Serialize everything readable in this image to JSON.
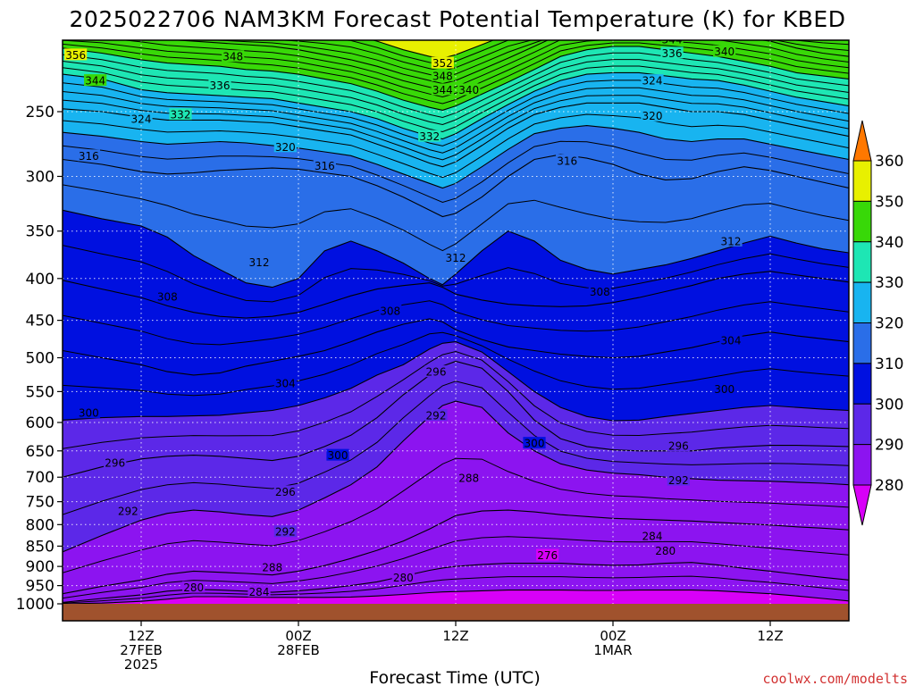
{
  "chart_data": {
    "type": "heatmap",
    "title": "2025022706 NAM3KM Forecast Potential Temperature (K) for KBED",
    "xlabel": "Forecast Time (UTC)",
    "ylabel": "",
    "credit": "coolwx.com/modelts",
    "y_axis": {
      "scale": "log-pressure",
      "range_hpa": [
        1000,
        200
      ],
      "ticks": [
        250,
        300,
        350,
        400,
        450,
        500,
        550,
        600,
        650,
        700,
        750,
        800,
        850,
        900,
        950,
        1000
      ]
    },
    "x_axis": {
      "range_hours": [
        0,
        60
      ],
      "ticks": [
        {
          "hour": 6,
          "line1": "12Z",
          "line2": "27FEB",
          "line3": "2025"
        },
        {
          "hour": 18,
          "line1": "00Z",
          "line2": "28FEB",
          "line3": ""
        },
        {
          "hour": 30,
          "line1": "12Z",
          "line2": "",
          "line3": ""
        },
        {
          "hour": 42,
          "line1": "00Z",
          "line2": "1MAR",
          "line3": ""
        },
        {
          "hour": 54,
          "line1": "12Z",
          "line2": "",
          "line3": ""
        }
      ]
    },
    "colorbar": {
      "levels": [
        280,
        290,
        300,
        310,
        320,
        330,
        340,
        350,
        360
      ],
      "colors": [
        "#d800f8",
        "#8c14f0",
        "#5c28e8",
        "#0010e0",
        "#2a6ee8",
        "#18b4f0",
        "#1ee6b4",
        "#38d808",
        "#e8f000",
        "#ffa800",
        "#ff7800"
      ],
      "arrows": "both"
    },
    "colors": {
      "ground": "#a0522d",
      "axis": "#000000",
      "grid": "#ffffff"
    },
    "sample_columns_hours": [
      0,
      3,
      6,
      8,
      10,
      12,
      14,
      16,
      18,
      20,
      22,
      24,
      26,
      28,
      29,
      30,
      32,
      34,
      36,
      38,
      40,
      42,
      44,
      46,
      48,
      50,
      52,
      54,
      56,
      58,
      60
    ],
    "contour_profiles": [
      {
        "theta": 280,
        "p": [
          1000,
          998,
          993,
          987,
          980,
          980,
          981,
          982,
          982,
          982,
          981,
          978,
          974,
          969,
          967,
          966,
          964,
          962,
          962,
          962,
          963,
          963,
          962,
          962,
          962,
          964,
          968,
          972,
          978,
          985,
          992
        ]
      },
      {
        "theta": 284,
        "p": [
          996,
          985,
          975,
          965,
          960,
          962,
          965,
          968,
          964,
          958,
          950,
          940,
          925,
          910,
          904,
          900,
          895,
          892,
          892,
          892,
          895,
          897,
          896,
          892,
          890,
          896,
          905,
          912,
          920,
          928,
          935
        ]
      },
      {
        "theta": 288,
        "p": [
          972,
          952,
          935,
          920,
          912,
          915,
          918,
          922,
          912,
          898,
          880,
          860,
          838,
          810,
          795,
          780,
          770,
          768,
          772,
          778,
          782,
          786,
          788,
          790,
          792,
          795,
          798,
          801,
          805,
          808,
          812
        ]
      },
      {
        "theta": 292,
        "p": [
          864,
          825,
          790,
          775,
          768,
          772,
          778,
          782,
          768,
          742,
          715,
          680,
          632,
          590,
          572,
          565,
          575,
          618,
          650,
          674,
          686,
          692,
          695,
          700,
          703,
          706,
          707,
          708,
          710,
          712,
          715
        ]
      },
      {
        "theta": 296,
        "p": [
          700,
          680,
          665,
          660,
          658,
          660,
          664,
          668,
          660,
          642,
          622,
          592,
          555,
          525,
          512,
          505,
          515,
          550,
          596,
          628,
          642,
          648,
          650,
          650,
          650,
          645,
          642,
          640,
          640,
          641,
          642
        ]
      },
      {
        "theta": 300,
        "p": [
          596,
          592,
          590,
          590,
          589,
          588,
          584,
          580,
          572,
          560,
          545,
          525,
          510,
          488,
          480,
          478,
          492,
          520,
          550,
          575,
          590,
          597,
          596,
          590,
          585,
          580,
          575,
          572,
          575,
          578,
          580
        ]
      },
      {
        "theta": 304,
        "p": [
          490,
          500,
          510,
          520,
          525,
          522,
          512,
          505,
          498,
          490,
          478,
          465,
          455,
          448,
          452,
          462,
          475,
          485,
          490,
          495,
          498,
          500,
          498,
          492,
          486,
          478,
          470,
          465,
          470,
          474,
          478
        ]
      },
      {
        "theta": 308,
        "p": [
          402,
          412,
          422,
          432,
          440,
          445,
          447,
          445,
          440,
          430,
          420,
          412,
          408,
          405,
          410,
          418,
          425,
          430,
          432,
          433,
          432,
          428,
          422,
          415,
          408,
          400,
          395,
          392,
          396,
          400,
          404
        ]
      },
      {
        "theta": 312,
        "p": [
          330,
          338,
          345,
          356,
          375,
          390,
          405,
          410,
          400,
          370,
          360,
          370,
          383,
          400,
          407,
          395,
          370,
          350,
          360,
          380,
          390,
          395,
          390,
          385,
          378,
          370,
          362,
          355,
          362,
          368,
          372
        ]
      },
      {
        "theta": 316,
        "p": [
          286,
          290,
          296,
          298,
          297,
          295,
          294,
          293,
          294,
          297,
          300,
          308,
          318,
          330,
          336,
          333,
          318,
          300,
          286,
          282,
          285,
          290,
          298,
          303,
          302,
          296,
          292,
          295,
          300,
          305,
          310
        ]
      },
      {
        "theta": 320,
        "p": [
          265,
          268,
          272,
          274,
          273,
          272,
          273,
          275,
          277,
          280,
          283,
          290,
          298,
          306,
          310,
          306,
          292,
          278,
          266,
          262,
          260,
          262,
          265,
          270,
          272,
          270,
          270,
          274,
          278,
          282,
          286
        ]
      },
      {
        "theta": 324,
        "p": [
          248,
          250,
          254,
          256,
          256,
          256,
          257,
          258,
          261,
          264,
          267,
          274,
          281,
          289,
          292,
          288,
          275,
          262,
          252,
          247,
          244,
          244,
          244,
          247,
          250,
          250,
          252,
          256,
          260,
          264,
          268
        ]
      },
      {
        "theta": 332,
        "p": [
          225,
          228,
          235,
          237,
          238,
          239,
          240,
          241,
          244,
          247,
          250,
          255,
          262,
          268,
          270,
          266,
          255,
          245,
          236,
          229,
          225,
          224,
          224,
          226,
          228,
          229,
          232,
          236,
          240,
          243,
          246
        ]
      },
      {
        "theta": 340,
        "p": [
          209,
          212,
          216,
          218,
          219,
          220,
          222,
          223,
          225,
          228,
          231,
          236,
          242,
          247,
          249,
          246,
          238,
          230,
          222,
          214,
          210,
          208,
          208,
          210,
          212,
          214,
          217,
          220,
          224,
          226,
          228
        ]
      },
      {
        "theta": 348,
        "p": [
          200,
          200,
          202,
          204,
          205,
          206,
          207,
          208,
          210,
          213,
          216,
          220,
          225,
          229,
          231,
          229,
          222,
          215,
          208,
          201,
          200,
          200,
          200,
          200,
          200,
          201,
          203,
          205,
          209,
          212,
          214
        ]
      },
      {
        "theta": 356,
        "p": [
          200,
          200,
          200,
          200,
          200,
          200,
          200,
          200,
          200,
          200,
          201,
          205,
          210,
          214,
          215,
          213,
          207,
          201,
          200,
          200,
          200,
          200,
          200,
          200,
          200,
          200,
          200,
          200,
          200,
          200,
          200
        ]
      }
    ],
    "contour_labels": [
      {
        "text": "356",
        "hour": 1.0,
        "p": 213
      },
      {
        "text": "356",
        "hour": 18.0,
        "p": 201
      },
      {
        "text": "348",
        "hour": 13.0,
        "p": 214
      },
      {
        "text": "352",
        "hour": 29.0,
        "p": 218
      },
      {
        "text": "348",
        "hour": 29.0,
        "p": 226
      },
      {
        "text": "344",
        "hour": 29.0,
        "p": 235
      },
      {
        "text": "340",
        "hour": 31.0,
        "p": 235
      },
      {
        "text": "344",
        "hour": 2.5,
        "p": 229
      },
      {
        "text": "336",
        "hour": 12.0,
        "p": 232
      },
      {
        "text": "344",
        "hour": 46.5,
        "p": 204
      },
      {
        "text": "336",
        "hour": 46.5,
        "p": 212
      },
      {
        "text": "340",
        "hour": 50.5,
        "p": 211
      },
      {
        "text": "324",
        "hour": 45.0,
        "p": 229
      },
      {
        "text": "320",
        "hour": 45.0,
        "p": 253
      },
      {
        "text": "324",
        "hour": 6.0,
        "p": 255
      },
      {
        "text": "332",
        "hour": 9.0,
        "p": 252
      },
      {
        "text": "332",
        "hour": 28.0,
        "p": 268
      },
      {
        "text": "320",
        "hour": 17.0,
        "p": 276
      },
      {
        "text": "316",
        "hour": 2.0,
        "p": 283
      },
      {
        "text": "316",
        "hour": 20.0,
        "p": 291
      },
      {
        "text": "316",
        "hour": 38.5,
        "p": 287
      },
      {
        "text": "312",
        "hour": 51.0,
        "p": 360
      },
      {
        "text": "312",
        "hour": 15.0,
        "p": 382
      },
      {
        "text": "312",
        "hour": 30.0,
        "p": 377
      },
      {
        "text": "308",
        "hour": 8.0,
        "p": 421
      },
      {
        "text": "308",
        "hour": 25.0,
        "p": 438
      },
      {
        "text": "308",
        "hour": 41.0,
        "p": 415
      },
      {
        "text": "304",
        "hour": 51.0,
        "p": 476
      },
      {
        "text": "304",
        "hour": 17.0,
        "p": 537
      },
      {
        "text": "300",
        "hour": 2.0,
        "p": 584
      },
      {
        "text": "300",
        "hour": 21.0,
        "p": 658
      },
      {
        "text": "300",
        "hour": 36.0,
        "p": 636
      },
      {
        "text": "300",
        "hour": 50.5,
        "p": 546
      },
      {
        "text": "296",
        "hour": 28.5,
        "p": 520
      },
      {
        "text": "296",
        "hour": 4.0,
        "p": 672
      },
      {
        "text": "296",
        "hour": 17.0,
        "p": 729
      },
      {
        "text": "296",
        "hour": 47.0,
        "p": 641
      },
      {
        "text": "292",
        "hour": 28.5,
        "p": 588
      },
      {
        "text": "292",
        "hour": 47.0,
        "p": 706
      },
      {
        "text": "292",
        "hour": 5.0,
        "p": 770
      },
      {
        "text": "292",
        "hour": 17.0,
        "p": 816
      },
      {
        "text": "288",
        "hour": 31.0,
        "p": 701
      },
      {
        "text": "288",
        "hour": 16.0,
        "p": 902
      },
      {
        "text": "284",
        "hour": 45.0,
        "p": 826
      },
      {
        "text": "284",
        "hour": 15.0,
        "p": 966
      },
      {
        "text": "280",
        "hour": 46.0,
        "p": 861
      },
      {
        "text": "280",
        "hour": 26.0,
        "p": 928
      },
      {
        "text": "280",
        "hour": 10.0,
        "p": 955
      },
      {
        "text": "276",
        "hour": 37.0,
        "p": 872
      }
    ]
  }
}
